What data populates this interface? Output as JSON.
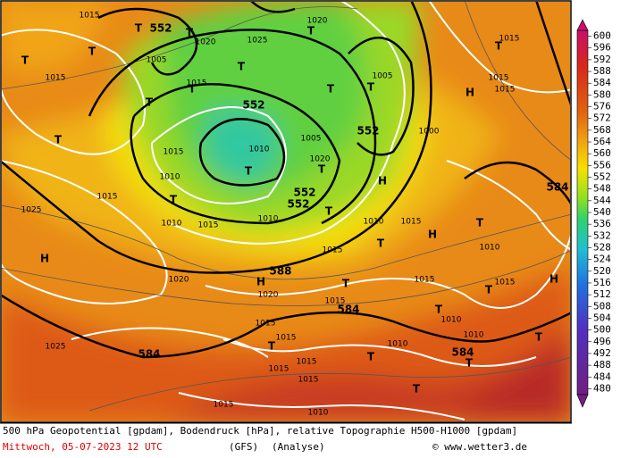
{
  "colorbar": {
    "labels": [
      600,
      596,
      592,
      588,
      584,
      580,
      576,
      572,
      568,
      564,
      560,
      556,
      552,
      548,
      544,
      540,
      536,
      532,
      528,
      524,
      520,
      516,
      512,
      508,
      504,
      500,
      496,
      492,
      488,
      484,
      480
    ]
  },
  "map_labels": [
    "552",
    "552",
    "552",
    "552",
    "552",
    "588",
    "584",
    "584",
    "584",
    "584",
    "1015",
    "1015",
    "1025",
    "1025",
    "1015",
    "1010",
    "1010",
    "1015",
    "1010",
    "1020",
    "1020",
    "1015",
    "1015",
    "1015",
    "1015",
    "1015",
    "1010",
    "1015",
    "1010",
    "1015",
    "1015",
    "1015",
    "1015",
    "1010",
    "1010",
    "1010",
    "1010",
    "1015",
    "1015",
    "1015",
    "1015",
    "1000",
    "1005",
    "1010",
    "1005",
    "1020",
    "1020",
    "1025",
    "1020",
    "1015",
    "1005",
    "1015",
    "H",
    "H",
    "H",
    "H",
    "H",
    "H",
    "T",
    "T",
    "T",
    "T",
    "T",
    "T",
    "T",
    "T",
    "T",
    "T",
    "T",
    "T",
    "T",
    "T",
    "T",
    "T",
    "T",
    "T",
    "T",
    "T",
    "T",
    "T",
    "T",
    "T",
    "T",
    "T"
  ],
  "footer": {
    "description": "500 hPa Geopotential [gpdam], Bodendruck [hPa], relative Topographie H500-H1000 [gpdam]",
    "date": "Mittwoch, 05-07-2023  12 UTC",
    "model": "(GFS)",
    "run": "(Analyse)",
    "credit": "© www.wetter3.de"
  }
}
